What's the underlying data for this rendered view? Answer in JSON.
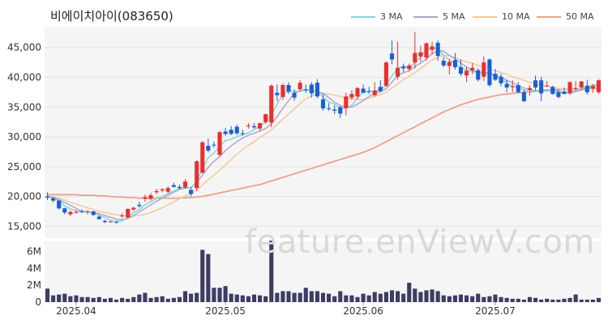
{
  "title": "비에이치아이(083650)",
  "watermark": "feature.enViewV.com",
  "legend": [
    {
      "label": "3 MA",
      "color": "#7fd6dc"
    },
    {
      "label": "5 MA",
      "color": "#b3a3c8"
    },
    {
      "label": "10 MA",
      "color": "#f2c99a"
    },
    {
      "label": "50 MA",
      "color": "#f0a08f"
    }
  ],
  "colors": {
    "up": "#e8302f",
    "down": "#1a5fd6",
    "volume": "#3d3c63",
    "panel_bg": "#f5f5f5"
  },
  "chart_data": [
    {
      "type": "candlestick",
      "title": "비에이치아이(083650)",
      "ylim": [
        13000,
        48500
      ],
      "y_ticks": [
        15000,
        20000,
        25000,
        30000,
        35000,
        40000,
        45000
      ],
      "y_tick_labels": [
        "15,000",
        "20,000",
        "25,000",
        "30,000",
        "35,000",
        "40,000",
        "45,000"
      ],
      "x_tick_labels": [
        {
          "label": "2025.04",
          "index": 5
        },
        {
          "label": "2025.05",
          "index": 31
        },
        {
          "label": "2025.06",
          "index": 55
        },
        {
          "label": "2025.07",
          "index": 78
        }
      ],
      "ohlc": [
        [
          20000,
          20700,
          19400,
          19800
        ],
        [
          19700,
          19900,
          19000,
          19300
        ],
        [
          19300,
          19400,
          17800,
          18000
        ],
        [
          18000,
          18100,
          17000,
          17300
        ],
        [
          17000,
          17600,
          16700,
          17400
        ],
        [
          17300,
          17700,
          17100,
          17400
        ],
        [
          17500,
          17800,
          17200,
          17400
        ],
        [
          17400,
          17700,
          17000,
          17500
        ],
        [
          17500,
          17600,
          16700,
          16900
        ],
        [
          16600,
          16800,
          16100,
          16200
        ],
        [
          15900,
          16100,
          15500,
          15700
        ],
        [
          15700,
          15900,
          15600,
          15800
        ],
        [
          15700,
          15900,
          15500,
          15600
        ],
        [
          16700,
          17200,
          16400,
          16800
        ],
        [
          16500,
          18000,
          16400,
          17900
        ],
        [
          17800,
          18300,
          17600,
          18100
        ],
        [
          18600,
          19100,
          18100,
          18400
        ],
        [
          19600,
          20300,
          19100,
          19900
        ],
        [
          19600,
          20600,
          19300,
          20200
        ],
        [
          20700,
          21300,
          20400,
          20900
        ],
        [
          21000,
          21400,
          20700,
          21200
        ],
        [
          20800,
          21700,
          20600,
          21400
        ],
        [
          21900,
          22300,
          21500,
          21600
        ],
        [
          21600,
          22000,
          21200,
          21400
        ],
        [
          21500,
          22900,
          21300,
          22500
        ],
        [
          21100,
          21600,
          20000,
          20400
        ],
        [
          21400,
          26100,
          20900,
          25900
        ],
        [
          24000,
          29300,
          23900,
          29100
        ],
        [
          28500,
          29700,
          27400,
          27700
        ],
        [
          28700,
          29200,
          28200,
          28600
        ],
        [
          27000,
          31000,
          26800,
          30800
        ],
        [
          30900,
          31500,
          30200,
          30500
        ],
        [
          31200,
          31800,
          30300,
          30500
        ],
        [
          31700,
          32100,
          30300,
          30600
        ],
        [
          30600,
          31200,
          30200,
          30500
        ],
        [
          31800,
          32300,
          31400,
          31900
        ],
        [
          31800,
          32300,
          31400,
          31600
        ],
        [
          31400,
          32400,
          31000,
          32300
        ],
        [
          32500,
          33900,
          32200,
          33800
        ],
        [
          32400,
          38800,
          31600,
          38600
        ],
        [
          37400,
          38800,
          36000,
          37000
        ],
        [
          36700,
          39000,
          36200,
          38700
        ],
        [
          38700,
          39200,
          37200,
          37600
        ],
        [
          37400,
          38000,
          36100,
          36600
        ],
        [
          38000,
          39500,
          37600,
          39100
        ],
        [
          38000,
          38800,
          37400,
          37900
        ],
        [
          38800,
          39200,
          36600,
          37300
        ],
        [
          39100,
          39700,
          36500,
          36800
        ],
        [
          36300,
          37200,
          34400,
          34800
        ],
        [
          34800,
          35700,
          34400,
          34700
        ],
        [
          34600,
          35300,
          33800,
          34400
        ],
        [
          35000,
          35200,
          33200,
          33900
        ],
        [
          34800,
          37400,
          33600,
          36800
        ],
        [
          36600,
          37800,
          36200,
          37200
        ],
        [
          36800,
          38400,
          36300,
          38200
        ],
        [
          38100,
          38800,
          37400,
          37400
        ],
        [
          37700,
          38400,
          37200,
          37600
        ],
        [
          37000,
          39200,
          36800,
          37800
        ],
        [
          38400,
          39500,
          37500,
          37700
        ],
        [
          38600,
          42700,
          38400,
          42500
        ],
        [
          44000,
          46200,
          42200,
          43000
        ],
        [
          40100,
          46000,
          39600,
          41600
        ],
        [
          41800,
          42300,
          40900,
          41500
        ],
        [
          41400,
          42300,
          41000,
          42000
        ],
        [
          42500,
          47600,
          41500,
          44100
        ],
        [
          43500,
          45300,
          42600,
          44200
        ],
        [
          43300,
          45900,
          42800,
          45700
        ],
        [
          44600,
          46000,
          43800,
          45200
        ],
        [
          45800,
          46200,
          42800,
          43600
        ],
        [
          42800,
          43400,
          41700,
          42000
        ],
        [
          41900,
          43100,
          40500,
          42600
        ],
        [
          42900,
          44100,
          41300,
          41700
        ],
        [
          41700,
          43000,
          40200,
          40600
        ],
        [
          40300,
          41800,
          39200,
          41100
        ],
        [
          41200,
          42400,
          40500,
          41600
        ],
        [
          41200,
          41500,
          39300,
          39600
        ],
        [
          40100,
          43500,
          39400,
          42500
        ],
        [
          43000,
          43200,
          38400,
          38700
        ],
        [
          40600,
          41400,
          39400,
          39600
        ],
        [
          40100,
          40600,
          38500,
          39000
        ],
        [
          38900,
          39600,
          37500,
          38300
        ],
        [
          38500,
          39500,
          37500,
          38500
        ],
        [
          38700,
          39200,
          37400,
          37500
        ],
        [
          37500,
          37900,
          35800,
          36000
        ],
        [
          37900,
          38700,
          36900,
          38200
        ],
        [
          39500,
          40300,
          37800,
          38300
        ],
        [
          39500,
          40100,
          36000,
          37300
        ],
        [
          38600,
          39400,
          38400,
          38600
        ],
        [
          38400,
          38600,
          37100,
          37200
        ],
        [
          37500,
          38000,
          36500,
          36700
        ],
        [
          37600,
          38300,
          37200,
          37200
        ],
        [
          37300,
          39300,
          37100,
          39200
        ],
        [
          38100,
          39400,
          37800,
          38200
        ],
        [
          38300,
          39400,
          37800,
          39300
        ],
        [
          38600,
          39600,
          37100,
          37500
        ],
        [
          38100,
          38900,
          37400,
          38500
        ],
        [
          37500,
          39700,
          37200,
          39500
        ]
      ],
      "ma": {
        "3 MA": [
          20000,
          19700,
          19300,
          18400,
          17900,
          17600,
          17400,
          17400,
          17300,
          16800,
          16500,
          16000,
          15800,
          15900,
          16500,
          17300,
          17800,
          18600,
          19100,
          19700,
          20000,
          20500,
          20900,
          21300,
          21500,
          21400,
          22600,
          24700,
          26500,
          27300,
          28400,
          29400,
          29600,
          30000,
          30400,
          30700,
          31200,
          31800,
          32500,
          33700,
          35500,
          37200,
          37700,
          37600,
          37700,
          37800,
          37800,
          37600,
          36700,
          35900,
          35500,
          34800,
          34900,
          35300,
          36500,
          37500,
          37600,
          37700,
          37900,
          38700,
          40300,
          41500,
          41900,
          41600,
          42500,
          43400,
          44600,
          45000,
          44800,
          43700,
          42900,
          42300,
          41700,
          41200,
          41000,
          40700,
          40800,
          40500,
          40300,
          39800,
          39000,
          38500,
          38200,
          37900,
          37500,
          37600,
          37700,
          37700,
          37700,
          37500,
          37400,
          37500,
          37800,
          38100,
          38400,
          38700,
          38700
        ],
        "5 MA": [
          20000,
          19800,
          19500,
          19000,
          18500,
          18000,
          17500,
          17400,
          17300,
          17100,
          16800,
          16500,
          16200,
          16100,
          16300,
          16800,
          17400,
          18000,
          18600,
          19200,
          19700,
          20200,
          20700,
          21200,
          21400,
          21500,
          22300,
          23600,
          24900,
          25900,
          26700,
          27700,
          28500,
          29200,
          29800,
          30300,
          30600,
          31000,
          31400,
          32200,
          33400,
          34800,
          36100,
          37300,
          37800,
          37900,
          37800,
          37600,
          37300,
          36600,
          35800,
          35300,
          35000,
          35000,
          35500,
          36100,
          36800,
          37300,
          37600,
          38100,
          39200,
          40300,
          40800,
          41100,
          41800,
          42400,
          43100,
          44000,
          44500,
          44400,
          43700,
          43100,
          42400,
          41700,
          41200,
          40900,
          40800,
          40700,
          40400,
          40000,
          39500,
          39100,
          38600,
          38200,
          37900,
          37700,
          37800,
          37900,
          37800,
          37600,
          37500,
          37400,
          37600,
          37900,
          38200,
          38500,
          38600
        ],
        "10 MA": [
          20000,
          19900,
          19700,
          19400,
          19000,
          18700,
          18400,
          18100,
          17800,
          17500,
          17300,
          17100,
          16900,
          16800,
          16700,
          16700,
          16800,
          17000,
          17300,
          17700,
          18100,
          18600,
          19100,
          19600,
          20100,
          20500,
          21100,
          21900,
          22800,
          23600,
          24400,
          25300,
          26200,
          27100,
          27900,
          28600,
          29200,
          29900,
          30500,
          31200,
          32100,
          33000,
          33800,
          34700,
          35600,
          36400,
          36900,
          37300,
          37300,
          37200,
          37000,
          36800,
          36600,
          36400,
          36300,
          36300,
          36500,
          36800,
          37100,
          37500,
          38200,
          38900,
          39600,
          40200,
          40800,
          41500,
          42200,
          42900,
          43400,
          43700,
          43600,
          43300,
          42900,
          42600,
          42400,
          42000,
          41700,
          41400,
          41100,
          40800,
          40500,
          40100,
          39800,
          39500,
          39200,
          38900,
          38700,
          38500,
          38300,
          38100,
          38000,
          37900,
          37900,
          37900,
          38000,
          38100,
          38200
        ],
        "50 MA": [
          20300,
          20300,
          20300,
          20300,
          20300,
          20300,
          20200,
          20200,
          20200,
          20100,
          20100,
          20000,
          19900,
          19900,
          19800,
          19800,
          19700,
          19700,
          19700,
          19700,
          19700,
          19700,
          19700,
          19700,
          19800,
          19800,
          19900,
          20000,
          20200,
          20400,
          20600,
          20800,
          21000,
          21200,
          21400,
          21600,
          21800,
          22000,
          22300,
          22600,
          22900,
          23200,
          23500,
          23800,
          24100,
          24400,
          24700,
          25000,
          25300,
          25600,
          25900,
          26200,
          26500,
          26800,
          27100,
          27400,
          27800,
          28200,
          28700,
          29200,
          29700,
          30200,
          30700,
          31200,
          31700,
          32200,
          32700,
          33200,
          33700,
          34200,
          34600,
          35000,
          35400,
          35700,
          36000,
          36300,
          36500,
          36700,
          36900,
          37100,
          37200,
          37300,
          37400,
          37500,
          37600,
          37700,
          37800,
          37800,
          37900,
          37900,
          38000,
          38000,
          38000,
          38000,
          38100,
          38100,
          38100
        ]
      }
    },
    {
      "type": "bar",
      "title": "",
      "ylim": [
        0,
        7200000
      ],
      "y_ticks": [
        0,
        2000000,
        4000000,
        6000000
      ],
      "y_tick_labels": [
        "0",
        "2M",
        "4M",
        "6M"
      ],
      "values": [
        1600000,
        800000,
        900000,
        1000000,
        700000,
        800000,
        600000,
        600000,
        500000,
        600000,
        400000,
        500000,
        300000,
        500000,
        400000,
        600000,
        900000,
        1100000,
        500000,
        600000,
        700000,
        400000,
        500000,
        600000,
        1300000,
        1000000,
        1100000,
        6200000,
        5700000,
        1700000,
        1700000,
        1900000,
        1000000,
        900000,
        800000,
        700000,
        900000,
        800000,
        700000,
        7300000,
        1100000,
        1300000,
        1300000,
        1100000,
        1100000,
        1700000,
        1300000,
        1300000,
        1100000,
        1000000,
        700000,
        1300000,
        800000,
        800000,
        600000,
        1000000,
        800000,
        1200000,
        1000000,
        1200000,
        1400000,
        1300000,
        1000000,
        2300000,
        1600000,
        1200000,
        1400000,
        1500000,
        1300000,
        800000,
        700000,
        800000,
        900000,
        800000,
        700000,
        1000000,
        600000,
        700000,
        900000,
        600000,
        500000,
        400000,
        400000,
        300000,
        600000,
        500000,
        300000,
        400000,
        300000,
        300000,
        400000,
        500000,
        900000,
        300000,
        300000,
        300000,
        500000
      ]
    }
  ]
}
